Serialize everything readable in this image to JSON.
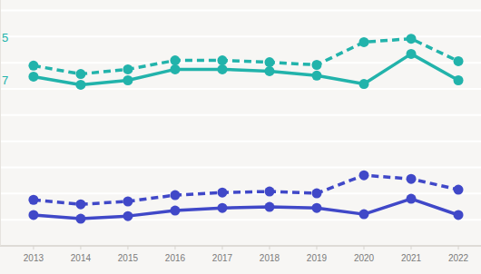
{
  "chart_data": {
    "type": "line",
    "x": [
      2013,
      2014,
      2015,
      2016,
      2017,
      2018,
      2019,
      2020,
      2021,
      2022
    ],
    "xlim": [
      2012.29,
      2022.48
    ],
    "xticks": [
      2013,
      2014,
      2015,
      2016,
      2017,
      2018,
      2019,
      2020,
      2021,
      2022
    ],
    "ylim": [
      0,
      9.4
    ],
    "yticks": [
      0,
      1,
      2,
      3,
      4,
      5,
      6,
      7,
      8,
      9
    ],
    "grid": true,
    "tick_labels": "x",
    "annotations": [
      {
        "text": "5",
        "color": "#22b3ab"
      },
      {
        "text": "7",
        "color": "#22b3ab"
      }
    ],
    "series": [
      {
        "color": "#22b3ab",
        "line_style": "dashed",
        "marker": "circle",
        "values": [
          6.89,
          6.57,
          6.75,
          7.09,
          7.09,
          7.02,
          6.92,
          7.79,
          7.92,
          7.06
        ]
      },
      {
        "color": "#22b3ab",
        "line_style": "solid",
        "marker": "circle",
        "values": [
          6.47,
          6.16,
          6.33,
          6.75,
          6.75,
          6.68,
          6.51,
          6.19,
          7.34,
          6.33
        ]
      },
      {
        "color": "#4048c8",
        "line_style": "dashed",
        "marker": "circle",
        "values": [
          1.76,
          1.59,
          1.7,
          1.94,
          2.04,
          2.08,
          2.01,
          2.7,
          2.56,
          2.15
        ]
      },
      {
        "color": "#4048c8",
        "line_style": "solid",
        "marker": "circle",
        "values": [
          1.18,
          1.04,
          1.14,
          1.35,
          1.45,
          1.49,
          1.45,
          1.21,
          1.8,
          1.18
        ]
      }
    ]
  }
}
